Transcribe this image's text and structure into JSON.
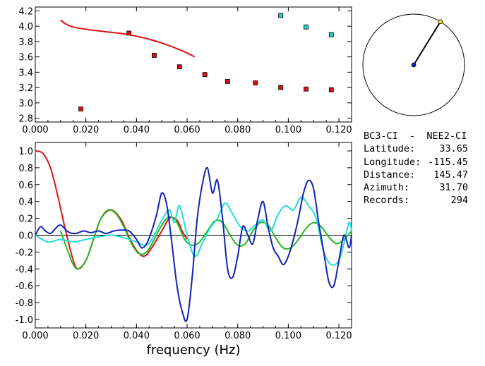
{
  "info": {
    "title": "BC3-CI  -  NEE2-CI",
    "rows": [
      {
        "label": "Latitude:",
        "value": "33.65"
      },
      {
        "label": "Longitude:",
        "value": "-115.45"
      },
      {
        "label": "Distance:",
        "value": "145.47"
      },
      {
        "label": "Azimuth:",
        "value": "31.70"
      },
      {
        "label": "Records:",
        "value": "294"
      }
    ]
  },
  "chart_data": [
    {
      "type": "scatter",
      "title": "",
      "xlabel": "",
      "ylabel": "",
      "xlim": [
        0.0,
        0.125
      ],
      "ylim": [
        2.75,
        4.25
      ],
      "x_ticks": [
        "0.000",
        "0.020",
        "0.040",
        "0.060",
        "0.080",
        "0.100",
        "0.120"
      ],
      "y_ticks": [
        "2.8",
        "3.0",
        "3.2",
        "3.4",
        "3.6",
        "3.8",
        "4.0",
        "4.2"
      ],
      "series": [
        {
          "color": "#dd1111",
          "marker": "square",
          "x": [
            0.018,
            0.037,
            0.047,
            0.057,
            0.067,
            0.076,
            0.087,
            0.097,
            0.107,
            0.117
          ],
          "y": [
            2.92,
            3.91,
            3.62,
            3.47,
            3.37,
            3.28,
            3.26,
            3.2,
            3.18,
            3.17
          ]
        },
        {
          "color": "#22cccc",
          "marker": "square",
          "x": [
            0.097,
            0.107,
            0.117
          ],
          "y": [
            4.14,
            3.99,
            3.89
          ]
        },
        {
          "color": "#dd1111",
          "type": "line",
          "x": [
            0.01,
            0.012,
            0.015,
            0.02,
            0.025,
            0.03,
            0.035,
            0.04,
            0.045,
            0.05,
            0.055,
            0.06,
            0.063
          ],
          "y": [
            4.08,
            4.03,
            3.99,
            3.96,
            3.94,
            3.92,
            3.9,
            3.87,
            3.83,
            3.78,
            3.72,
            3.65,
            3.6
          ]
        }
      ]
    },
    {
      "type": "line",
      "title": "",
      "xlabel": "frequency (Hz)",
      "ylabel": "",
      "xlim": [
        0.0,
        0.125
      ],
      "ylim": [
        -1.1,
        1.1
      ],
      "x_ticks": [
        "0.000",
        "0.020",
        "0.040",
        "0.060",
        "0.080",
        "0.100",
        "0.120"
      ],
      "y_ticks": [
        "-1.0",
        "-0.8",
        "-0.6",
        "-0.4",
        "-0.2",
        "0.0",
        "0.2",
        "0.4",
        "0.6",
        "0.8",
        "1.0"
      ],
      "zero_line": true,
      "series": [
        {
          "color": "#dd1111",
          "x": [
            0.0,
            0.003,
            0.006,
            0.009,
            0.012,
            0.015,
            0.017,
            0.02,
            0.023,
            0.026,
            0.03,
            0.034,
            0.037,
            0.04,
            0.043,
            0.046,
            0.05,
            0.053,
            0.056,
            0.058,
            0.06
          ],
          "y": [
            1.0,
            0.97,
            0.8,
            0.45,
            0.05,
            -0.3,
            -0.4,
            -0.3,
            -0.05,
            0.2,
            0.3,
            0.18,
            -0.02,
            -0.18,
            -0.25,
            -0.15,
            0.05,
            0.2,
            0.18,
            0.05,
            -0.05
          ]
        },
        {
          "color": "#22bb22",
          "x": [
            0.01,
            0.013,
            0.015,
            0.017,
            0.02,
            0.023,
            0.026,
            0.029,
            0.032,
            0.035,
            0.038,
            0.041,
            0.044,
            0.047,
            0.05,
            0.053,
            0.056,
            0.059,
            0.062,
            0.065,
            0.068,
            0.071,
            0.074,
            0.077,
            0.08,
            0.083,
            0.086,
            0.089,
            0.092,
            0.095,
            0.098,
            0.101,
            0.104,
            0.107,
            0.11,
            0.113,
            0.116,
            0.119,
            0.122,
            0.125
          ],
          "y": [
            0.05,
            -0.2,
            -0.35,
            -0.4,
            -0.3,
            -0.05,
            0.2,
            0.3,
            0.25,
            0.1,
            -0.1,
            -0.22,
            -0.2,
            -0.05,
            0.12,
            0.22,
            0.15,
            -0.05,
            -0.12,
            -0.08,
            0.05,
            0.17,
            0.15,
            0.0,
            -0.12,
            -0.1,
            0.05,
            0.15,
            0.12,
            -0.03,
            -0.15,
            -0.15,
            -0.05,
            0.08,
            0.15,
            0.1,
            -0.02,
            -0.1,
            -0.05,
            0.05
          ]
        },
        {
          "color": "#22dddd",
          "x": [
            0.0,
            0.005,
            0.01,
            0.015,
            0.02,
            0.025,
            0.03,
            0.035,
            0.04,
            0.044,
            0.047,
            0.05,
            0.053,
            0.055,
            0.057,
            0.06,
            0.063,
            0.066,
            0.069,
            0.072,
            0.075,
            0.078,
            0.081,
            0.084,
            0.087,
            0.09,
            0.093,
            0.096,
            0.099,
            0.102,
            0.105,
            0.108,
            0.111,
            0.114,
            0.117,
            0.12,
            0.122,
            0.124,
            0.125
          ],
          "y": [
            0.0,
            -0.08,
            -0.05,
            -0.08,
            -0.05,
            -0.02,
            0.0,
            -0.03,
            -0.08,
            -0.12,
            0.0,
            0.18,
            0.3,
            0.15,
            0.35,
            0.0,
            -0.25,
            -0.1,
            0.08,
            0.2,
            0.38,
            0.25,
            0.1,
            0.05,
            0.12,
            0.18,
            0.05,
            0.25,
            0.35,
            0.3,
            0.45,
            0.35,
            0.2,
            -0.2,
            -0.35,
            -0.3,
            -0.1,
            0.15,
            0.05
          ]
        },
        {
          "color": "#1122bb",
          "x": [
            0.0,
            0.002,
            0.004,
            0.006,
            0.008,
            0.01,
            0.013,
            0.016,
            0.019,
            0.022,
            0.025,
            0.028,
            0.031,
            0.034,
            0.037,
            0.04,
            0.042,
            0.044,
            0.046,
            0.048,
            0.05,
            0.052,
            0.054,
            0.056,
            0.058,
            0.06,
            0.062,
            0.064,
            0.066,
            0.068,
            0.07,
            0.072,
            0.074,
            0.076,
            0.078,
            0.08,
            0.082,
            0.084,
            0.086,
            0.088,
            0.09,
            0.092,
            0.094,
            0.096,
            0.098,
            0.1,
            0.102,
            0.104,
            0.106,
            0.108,
            0.11,
            0.112,
            0.114,
            0.116,
            0.118,
            0.12,
            0.122,
            0.124,
            0.125
          ],
          "y": [
            0.0,
            0.1,
            0.05,
            0.02,
            0.08,
            0.12,
            0.04,
            0.02,
            0.05,
            0.03,
            0.05,
            0.02,
            0.05,
            0.06,
            0.05,
            -0.05,
            -0.15,
            -0.1,
            0.05,
            0.25,
            0.5,
            0.35,
            -0.1,
            -0.6,
            -0.9,
            -1.0,
            -0.5,
            0.2,
            0.6,
            0.8,
            0.5,
            0.65,
            0.2,
            -0.4,
            -0.5,
            -0.25,
            0.1,
            0.0,
            -0.1,
            0.2,
            0.4,
            0.1,
            -0.15,
            -0.25,
            -0.35,
            -0.25,
            -0.05,
            0.2,
            0.5,
            0.65,
            0.55,
            0.15,
            -0.2,
            -0.55,
            -0.6,
            -0.3,
            0.0,
            -0.15,
            0.0
          ]
        }
      ]
    }
  ],
  "polar": {
    "point_azimuth_deg": 31.7,
    "line_color": "#000000",
    "end_point_color": "#dddd22",
    "center_point_color": "#1122bb"
  }
}
